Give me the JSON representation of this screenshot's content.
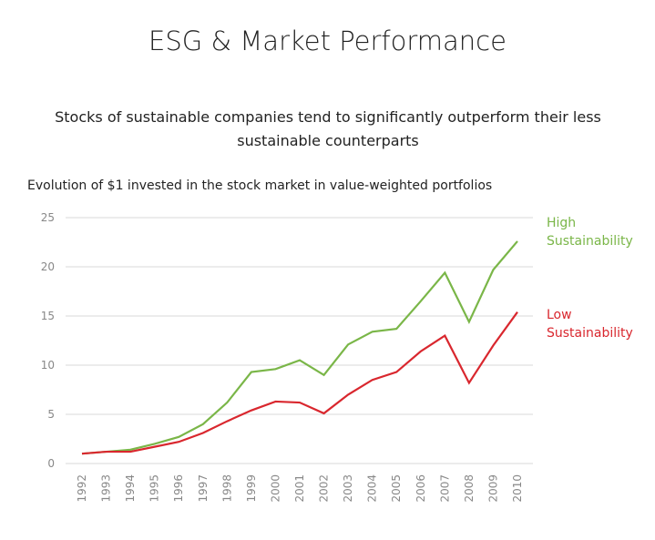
{
  "chart_data": {
    "type": "line",
    "title": "ESG & Market Performance",
    "subtitle": "Stocks of sustainable companies tend to significantly outperform their less sustainable counterparts",
    "y_axis_label": "Evolution of $1 invested in the stock market in value-weighted portfolios",
    "categories": [
      "1992",
      "1993",
      "1994",
      "1995",
      "1996",
      "1997",
      "1998",
      "1999",
      "2000",
      "2001",
      "2002",
      "2003",
      "2004",
      "2005",
      "2006",
      "2007",
      "2008",
      "2009",
      "2010"
    ],
    "series": [
      {
        "name": "High Sustainability",
        "color": "#7ab648",
        "values": [
          1.0,
          1.2,
          1.4,
          2.0,
          2.7,
          4.0,
          6.2,
          9.3,
          9.6,
          10.5,
          9.0,
          12.1,
          13.4,
          13.7,
          16.5,
          19.4,
          14.4,
          19.7,
          22.6
        ]
      },
      {
        "name": "Low Sustainability",
        "color": "#d9272e",
        "values": [
          1.0,
          1.2,
          1.2,
          1.7,
          2.2,
          3.1,
          4.3,
          5.4,
          6.3,
          6.2,
          5.1,
          7.0,
          8.5,
          9.3,
          11.4,
          13.0,
          8.2,
          12.0,
          15.4
        ]
      }
    ],
    "ylim": [
      0,
      25
    ],
    "yticks": [
      0,
      5,
      10,
      15,
      20,
      25
    ],
    "grid": true
  }
}
